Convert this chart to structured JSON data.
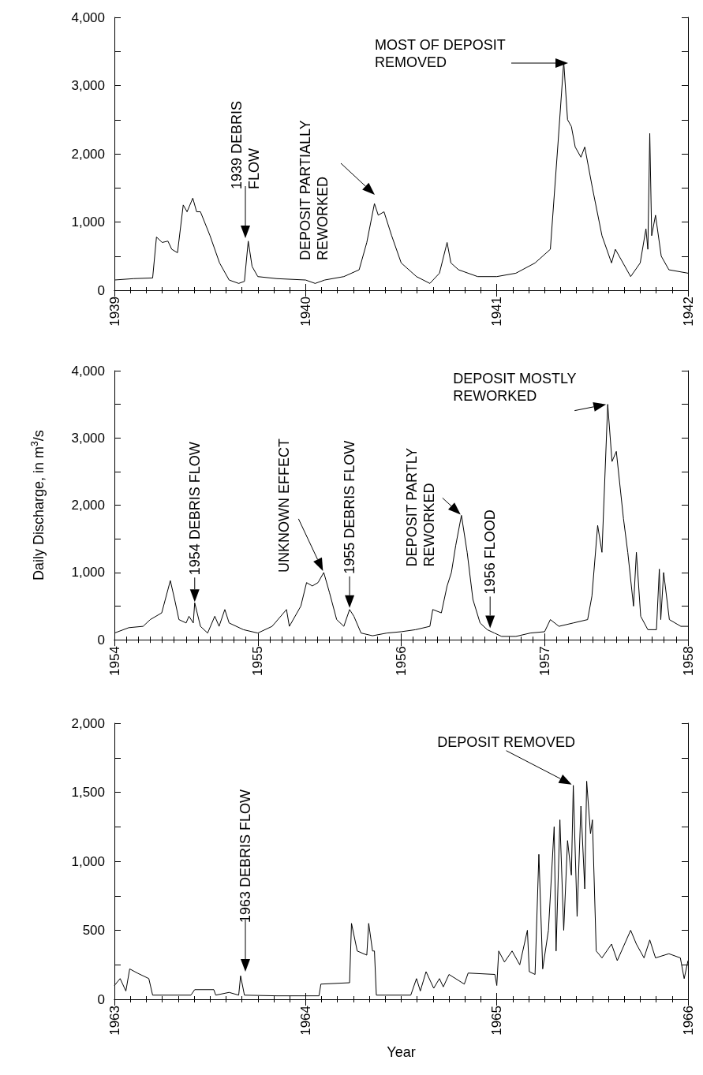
{
  "chart_data": [
    {
      "type": "line",
      "marker": "none",
      "line_style": "solid",
      "xlim": [
        1939,
        1942
      ],
      "xticks": [
        1939,
        1940,
        1941,
        1942
      ],
      "ylim": [
        0,
        4000
      ],
      "yticks": [
        {
          "value": 0,
          "label": "0"
        },
        {
          "value": 500,
          "label": null
        },
        {
          "value": 1000,
          "label": "1,000"
        },
        {
          "value": 1500,
          "label": null
        },
        {
          "value": 2000,
          "label": "2,000"
        },
        {
          "value": 2500,
          "label": null
        },
        {
          "value": 3000,
          "label": "3,000"
        },
        {
          "value": 3500,
          "label": null
        },
        {
          "value": 4000,
          "label": "4,000"
        }
      ],
      "series": [
        {
          "color": "#000000",
          "x": [
            1939.0,
            1939.1,
            1939.2,
            1939.22,
            1939.25,
            1939.28,
            1939.3,
            1939.33,
            1939.36,
            1939.38,
            1939.41,
            1939.43,
            1939.45,
            1939.5,
            1939.55,
            1939.6,
            1939.65,
            1939.68,
            1939.7,
            1939.72,
            1939.75,
            1939.85,
            1940.0,
            1940.05,
            1940.1,
            1940.2,
            1940.28,
            1940.32,
            1940.36,
            1940.38,
            1940.41,
            1940.45,
            1940.5,
            1940.58,
            1940.65,
            1940.7,
            1940.74,
            1940.76,
            1940.8,
            1940.9,
            1941.0,
            1941.1,
            1941.2,
            1941.28,
            1941.32,
            1941.35,
            1941.37,
            1941.39,
            1941.41,
            1941.44,
            1941.46,
            1941.5,
            1941.55,
            1941.6,
            1941.62,
            1941.65,
            1941.7,
            1941.75,
            1941.78,
            1941.79,
            1941.8,
            1941.81,
            1941.83,
            1941.86,
            1941.9,
            1942.0
          ],
          "values": [
            150,
            170,
            180,
            780,
            700,
            720,
            600,
            550,
            1250,
            1150,
            1350,
            1150,
            1150,
            800,
            400,
            150,
            100,
            130,
            720,
            350,
            200,
            170,
            150,
            100,
            150,
            200,
            300,
            700,
            1270,
            1100,
            1150,
            800,
            400,
            200,
            100,
            250,
            700,
            400,
            300,
            200,
            200,
            250,
            400,
            600,
            2150,
            3350,
            2500,
            2400,
            2100,
            1950,
            2100,
            1500,
            800,
            400,
            600,
            450,
            200,
            400,
            900,
            600,
            2300,
            800,
            1100,
            500,
            300,
            250
          ]
        }
      ],
      "annotations": [
        "1939 DEBRIS\nFLOW",
        "DEPOSIT PARTIALLY\nREWORKED",
        "MOST OF DEPOSIT\nREMOVED"
      ]
    },
    {
      "type": "line",
      "marker": "none",
      "line_style": "solid",
      "ylabel": "Daily Discharge, in m$^{3}$/s",
      "xlim": [
        1954,
        1958
      ],
      "xticks": [
        1954,
        1955,
        1956,
        1957,
        1958
      ],
      "ylim": [
        0,
        4000
      ],
      "yticks": [
        {
          "value": 0,
          "label": "0"
        },
        {
          "value": 500,
          "label": null
        },
        {
          "value": 1000,
          "label": "1,000"
        },
        {
          "value": 1500,
          "label": null
        },
        {
          "value": 2000,
          "label": "2,000"
        },
        {
          "value": 2500,
          "label": null
        },
        {
          "value": 3000,
          "label": "3,000"
        },
        {
          "value": 3500,
          "label": null
        },
        {
          "value": 4000,
          "label": "4,000"
        }
      ],
      "series": [
        {
          "color": "#000000",
          "x": [
            1954.0,
            1954.1,
            1954.2,
            1954.25,
            1954.33,
            1954.39,
            1954.42,
            1954.45,
            1954.5,
            1954.52,
            1954.55,
            1954.56,
            1954.6,
            1954.65,
            1954.7,
            1954.73,
            1954.77,
            1954.8,
            1954.9,
            1955.0,
            1955.1,
            1955.2,
            1955.22,
            1955.3,
            1955.34,
            1955.38,
            1955.42,
            1955.46,
            1955.5,
            1955.55,
            1955.6,
            1955.64,
            1955.67,
            1955.72,
            1955.8,
            1955.9,
            1956.0,
            1956.1,
            1956.2,
            1956.22,
            1956.28,
            1956.32,
            1956.35,
            1956.38,
            1956.42,
            1956.46,
            1956.5,
            1956.55,
            1956.6,
            1956.65,
            1956.7,
            1956.8,
            1956.9,
            1957.0,
            1957.04,
            1957.1,
            1957.2,
            1957.3,
            1957.33,
            1957.37,
            1957.4,
            1957.44,
            1957.47,
            1957.5,
            1957.55,
            1957.58,
            1957.62,
            1957.64,
            1957.67,
            1957.72,
            1957.78,
            1957.8,
            1957.81,
            1957.83,
            1957.87,
            1957.95,
            1958.0
          ],
          "values": [
            100,
            180,
            200,
            300,
            400,
            880,
            600,
            300,
            250,
            350,
            250,
            550,
            200,
            100,
            350,
            200,
            450,
            250,
            150,
            100,
            200,
            450,
            200,
            500,
            850,
            800,
            850,
            1000,
            700,
            300,
            200,
            450,
            350,
            100,
            60,
            100,
            120,
            150,
            200,
            450,
            400,
            800,
            1000,
            1400,
            1850,
            1300,
            600,
            250,
            150,
            100,
            50,
            50,
            100,
            120,
            300,
            200,
            250,
            300,
            650,
            1700,
            1300,
            3500,
            2650,
            2800,
            1800,
            1300,
            500,
            1300,
            350,
            150,
            150,
            1050,
            300,
            1000,
            300,
            200,
            200
          ]
        }
      ],
      "annotations": [
        {
          "text": "1954 DEBRIS FLOW",
          "x": 1954.56,
          "y": 550
        },
        {
          "text": "UNKNOWN EFFECT",
          "x": 1955.46,
          "y": 1000
        },
        {
          "text": "1955 DEBRIS FLOW",
          "x": 1955.64,
          "y": 450
        },
        {
          "text": "DEPOSIT PARTLY\nREWORKED",
          "x": 1956.42,
          "y": 1850
        },
        {
          "text": "1956 FLOOD",
          "x": 1956.62,
          "y": 150
        },
        {
          "text": "DEPOSIT MOSTLY\nREWORKED",
          "x": 1957.44,
          "y": 3500
        }
      ]
    },
    {
      "type": "line",
      "marker": "none",
      "line_style": "solid",
      "xlabel": "Year",
      "xlim": [
        1963,
        1966
      ],
      "xticks": [
        1963,
        1964,
        1965,
        1966
      ],
      "ylim": [
        0,
        2000
      ],
      "yticks": [
        {
          "value": 0,
          "label": "0"
        },
        {
          "value": 250,
          "label": null
        },
        500,
        {
          "value": 750,
          "label": null
        },
        {
          "value": 1000,
          "label": "1,000"
        },
        {
          "value": 1250,
          "label": null
        },
        {
          "value": 1500,
          "label": "1,500"
        },
        {
          "value": 1750,
          "label": null
        },
        {
          "value": 2000,
          "label": "2,000"
        }
      ],
      "series": [
        {
          "color": "#000000",
          "x": [
            1963.0,
            1963.03,
            1963.06,
            1963.08,
            1963.12,
            1963.18,
            1963.2,
            1963.4,
            1963.42,
            1963.52,
            1963.53,
            1963.6,
            1963.65,
            1963.66,
            1963.68,
            1963.85,
            1964.07,
            1964.08,
            1964.23,
            1964.24,
            1964.27,
            1964.32,
            1964.33,
            1964.35,
            1964.36,
            1964.37,
            1964.55,
            1964.58,
            1964.6,
            1964.63,
            1964.67,
            1964.7,
            1964.72,
            1964.75,
            1964.83,
            1964.85,
            1964.99,
            1965.0,
            1965.01,
            1965.04,
            1965.08,
            1965.12,
            1965.16,
            1965.17,
            1965.2,
            1965.22,
            1965.24,
            1965.27,
            1965.3,
            1965.31,
            1965.33,
            1965.35,
            1965.37,
            1965.39,
            1965.4,
            1965.42,
            1965.44,
            1965.46,
            1965.47,
            1965.49,
            1965.5,
            1965.52,
            1965.55,
            1965.6,
            1965.63,
            1965.7,
            1965.73,
            1965.77,
            1965.8,
            1965.83,
            1965.9,
            1965.96,
            1965.98,
            1966.0
          ],
          "values": [
            100,
            150,
            60,
            220,
            190,
            150,
            30,
            30,
            70,
            70,
            30,
            50,
            30,
            170,
            30,
            25,
            25,
            110,
            120,
            550,
            350,
            320,
            550,
            350,
            350,
            30,
            30,
            150,
            60,
            200,
            80,
            150,
            90,
            180,
            110,
            190,
            180,
            100,
            350,
            270,
            350,
            250,
            500,
            200,
            180,
            1050,
            220,
            500,
            1250,
            350,
            1300,
            500,
            1150,
            900,
            1550,
            600,
            1400,
            800,
            1580,
            1200,
            1300,
            350,
            300,
            400,
            280,
            500,
            400,
            300,
            430,
            300,
            330,
            300,
            150,
            280
          ]
        }
      ],
      "annotations": [
        "1963 DEBRIS FLOW",
        {
          "text": "DEPOSIT REMOVED",
          "x": 1965.4,
          "y": 1550
        }
      ]
    }
  ]
}
